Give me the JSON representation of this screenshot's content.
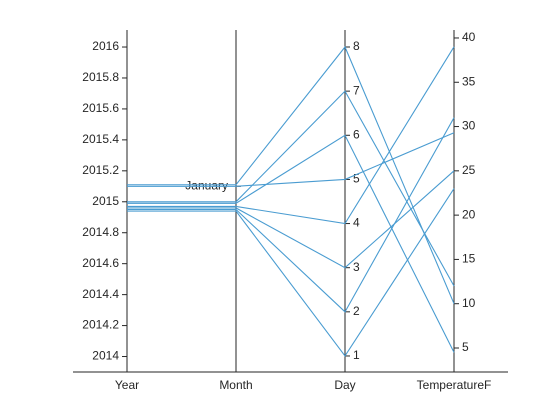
{
  "chart_data": {
    "type": "parallel",
    "color": "#4a9cd1",
    "dimensions": [
      {
        "label": "Year",
        "ylim": [
          2013.9,
          2016.11
        ],
        "yticks": [
          2014,
          2014.2,
          2014.4,
          2014.6,
          2014.8,
          2015,
          2015.2,
          2015.4,
          2015.6,
          2015.8,
          2016
        ]
      },
      {
        "label": "Month",
        "categories": [
          "January"
        ]
      },
      {
        "label": "Day",
        "ylim": [
          0.637,
          8.385
        ],
        "yticks": [
          1,
          2,
          3,
          4,
          5,
          6,
          7,
          8
        ]
      },
      {
        "label": "TemperatureF",
        "ylim": [
          2.29,
          40.9
        ],
        "yticks": [
          5,
          10,
          15,
          20,
          25,
          30,
          35,
          40
        ]
      }
    ],
    "series": [
      {
        "values": [
          2015.11,
          "January",
          8,
          10
        ]
      },
      {
        "values": [
          2015.1,
          "January",
          5,
          29.3
        ]
      },
      {
        "values": [
          2015.0,
          "January",
          7,
          12
        ]
      },
      {
        "values": [
          2014.99,
          "January",
          6,
          4.5
        ]
      },
      {
        "values": [
          2014.97,
          "January",
          4,
          39
        ]
      },
      {
        "values": [
          2014.96,
          "January",
          3,
          25
        ]
      },
      {
        "values": [
          2014.95,
          "January",
          2,
          31
        ]
      },
      {
        "values": [
          2014.94,
          "January",
          1,
          23
        ]
      }
    ]
  }
}
